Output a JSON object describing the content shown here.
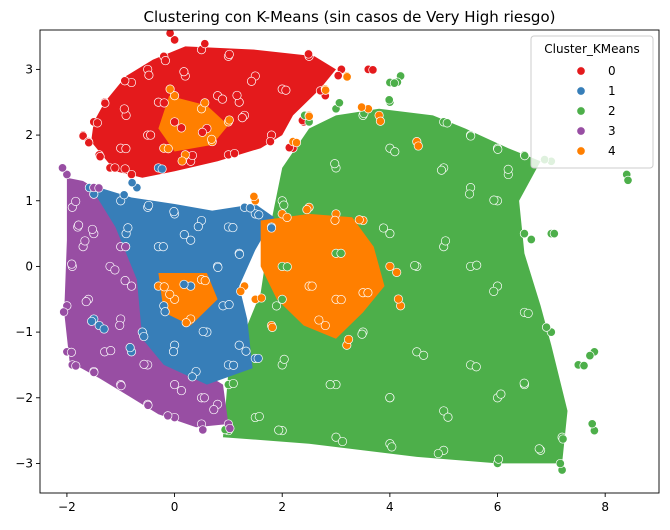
{
  "chart_data": {
    "type": "scatter",
    "title": "Clustering con K-Means (sin casos de Very High riesgo)",
    "xlabel": "",
    "ylabel": "",
    "xlim": [
      -2.5,
      9.0
    ],
    "ylim": [
      -3.45,
      3.6
    ],
    "xticks": [
      -2,
      0,
      2,
      4,
      6,
      8
    ],
    "xtick_labels": [
      "−2",
      "0",
      "2",
      "4",
      "6",
      "8"
    ],
    "yticks": [
      -3,
      -2,
      -1,
      0,
      1,
      2,
      3
    ],
    "ytick_labels": [
      "−3",
      "−2",
      "−1",
      "0",
      "1",
      "2",
      "3"
    ],
    "grid": false,
    "legend": {
      "title": "Cluster_KMeans",
      "placement": "top-right",
      "entries": [
        "0",
        "1",
        "2",
        "3",
        "4"
      ]
    },
    "series": [
      {
        "name": "0",
        "color": "#e41a1c",
        "region": "top-left",
        "points": [
          [
            0.0,
            3.45
          ],
          [
            0.5,
            3.3
          ],
          [
            1.0,
            3.2
          ],
          [
            2.5,
            3.2
          ],
          [
            3.1,
            3.0
          ],
          [
            3.6,
            3.0
          ],
          [
            -1.5,
            2.2
          ],
          [
            -1.7,
            2.0
          ],
          [
            -1.6,
            1.9
          ],
          [
            -1.3,
            2.5
          ],
          [
            -0.8,
            2.8
          ],
          [
            -0.5,
            3.0
          ],
          [
            -0.2,
            3.2
          ],
          [
            0.2,
            2.9
          ],
          [
            0.8,
            2.6
          ],
          [
            1.3,
            2.3
          ],
          [
            1.8,
            2.0
          ],
          [
            2.2,
            1.8
          ],
          [
            0.0,
            2.2
          ],
          [
            -0.5,
            2.0
          ],
          [
            -1.0,
            1.8
          ],
          [
            -1.2,
            1.5
          ],
          [
            -0.8,
            1.4
          ],
          [
            0.3,
            1.6
          ],
          [
            1.0,
            1.7
          ],
          [
            1.5,
            2.9
          ],
          [
            2.0,
            2.7
          ],
          [
            2.8,
            2.6
          ],
          [
            -0.3,
            2.5
          ],
          [
            0.6,
            2.1
          ],
          [
            1.2,
            2.5
          ],
          [
            -1.4,
            1.7
          ],
          [
            -0.9,
            2.3
          ],
          [
            2.4,
            2.2
          ]
        ]
      },
      {
        "name": "1",
        "color": "#377eb8",
        "region": "center-left",
        "points": [
          [
            -1.5,
            1.1
          ],
          [
            -1.0,
            1.0
          ],
          [
            -0.5,
            0.9
          ],
          [
            0.0,
            0.8
          ],
          [
            0.5,
            0.7
          ],
          [
            1.0,
            0.6
          ],
          [
            1.5,
            0.8
          ],
          [
            1.8,
            0.6
          ],
          [
            1.2,
            0.2
          ],
          [
            0.8,
            0.0
          ],
          [
            0.3,
            -0.3
          ],
          [
            -0.2,
            -0.6
          ],
          [
            -0.6,
            -1.0
          ],
          [
            -0.8,
            -1.3
          ],
          [
            -1.4,
            -0.9
          ],
          [
            -1.5,
            -0.8
          ],
          [
            0.0,
            -1.2
          ],
          [
            0.6,
            -1.0
          ],
          [
            1.2,
            -1.2
          ],
          [
            1.5,
            -1.4
          ],
          [
            1.0,
            -1.5
          ],
          [
            -0.3,
            0.3
          ],
          [
            0.3,
            0.4
          ],
          [
            -0.9,
            0.5
          ],
          [
            0.9,
            -0.6
          ],
          [
            0.4,
            -1.6
          ],
          [
            -0.3,
            1.5
          ],
          [
            -0.7,
            1.2
          ],
          [
            1.3,
            0.9
          ]
        ]
      },
      {
        "name": "2",
        "color": "#4daf4a",
        "region": "right",
        "points": [
          [
            2.5,
            2.2
          ],
          [
            3.0,
            2.4
          ],
          [
            3.5,
            2.3
          ],
          [
            4.0,
            2.5
          ],
          [
            4.2,
            2.9
          ],
          [
            4.0,
            2.8
          ],
          [
            5.0,
            2.2
          ],
          [
            5.5,
            2.0
          ],
          [
            6.0,
            1.8
          ],
          [
            6.5,
            1.7
          ],
          [
            7.0,
            1.6
          ],
          [
            8.4,
            1.4
          ],
          [
            2.0,
            1.0
          ],
          [
            3.0,
            1.5
          ],
          [
            4.0,
            1.8
          ],
          [
            5.0,
            1.5
          ],
          [
            5.5,
            1.2
          ],
          [
            6.0,
            1.0
          ],
          [
            6.5,
            0.5
          ],
          [
            7.0,
            0.5
          ],
          [
            2.0,
            0.0
          ],
          [
            3.0,
            0.2
          ],
          [
            4.0,
            0.5
          ],
          [
            5.0,
            0.3
          ],
          [
            5.5,
            0.0
          ],
          [
            6.0,
            -0.3
          ],
          [
            6.5,
            -0.7
          ],
          [
            7.0,
            -1.0
          ],
          [
            7.5,
            -1.5
          ],
          [
            7.8,
            -1.3
          ],
          [
            7.8,
            -2.5
          ],
          [
            7.2,
            -2.6
          ],
          [
            7.2,
            -3.1
          ],
          [
            6.8,
            -2.8
          ],
          [
            6.0,
            -3.0
          ],
          [
            5.0,
            -2.8
          ],
          [
            4.0,
            -2.7
          ],
          [
            3.0,
            -2.6
          ],
          [
            2.0,
            -2.5
          ],
          [
            1.0,
            -2.5
          ],
          [
            1.5,
            -2.3
          ],
          [
            1.0,
            -1.8
          ],
          [
            2.0,
            -1.5
          ],
          [
            3.0,
            -1.8
          ],
          [
            4.0,
            -2.0
          ],
          [
            5.0,
            -2.2
          ],
          [
            6.0,
            -2.0
          ],
          [
            2.0,
            -0.5
          ],
          [
            3.5,
            -1.0
          ],
          [
            4.5,
            -1.3
          ],
          [
            5.5,
            -1.5
          ],
          [
            6.5,
            -1.8
          ],
          [
            4.5,
            0.0
          ],
          [
            6.2,
            1.4
          ]
        ]
      },
      {
        "name": "3",
        "color": "#984ea3",
        "region": "left",
        "points": [
          [
            -2.0,
            1.4
          ],
          [
            -1.9,
            0.9
          ],
          [
            -1.8,
            0.6
          ],
          [
            -1.9,
            0.0
          ],
          [
            -2.0,
            -0.6
          ],
          [
            -2.0,
            -1.3
          ],
          [
            -1.9,
            -1.5
          ],
          [
            -1.5,
            -1.6
          ],
          [
            -1.0,
            -1.8
          ],
          [
            -0.5,
            -2.1
          ],
          [
            0.0,
            -2.3
          ],
          [
            0.5,
            -2.4
          ],
          [
            1.0,
            -2.4
          ],
          [
            -1.5,
            0.5
          ],
          [
            -1.2,
            0.0
          ],
          [
            -1.6,
            -0.5
          ],
          [
            -1.0,
            -0.8
          ],
          [
            -0.5,
            -1.5
          ],
          [
            0.0,
            -1.8
          ],
          [
            0.5,
            -2.0
          ],
          [
            -1.5,
            1.2
          ],
          [
            -1.0,
            0.3
          ],
          [
            -0.8,
            -0.3
          ],
          [
            -1.7,
            0.3
          ],
          [
            -1.3,
            -1.3
          ],
          [
            0.8,
            -2.1
          ]
        ]
      },
      {
        "name": "4",
        "color": "#ff7f00",
        "region": "center",
        "points": [
          [
            0.0,
            2.6
          ],
          [
            0.5,
            2.4
          ],
          [
            1.0,
            2.2
          ],
          [
            0.7,
            1.9
          ],
          [
            0.2,
            1.7
          ],
          [
            -0.2,
            1.8
          ],
          [
            2.2,
            1.9
          ],
          [
            2.5,
            2.3
          ],
          [
            2.8,
            2.7
          ],
          [
            3.2,
            2.9
          ],
          [
            3.6,
            2.4
          ],
          [
            3.8,
            2.3
          ],
          [
            4.5,
            1.9
          ],
          [
            1.5,
            1.0
          ],
          [
            2.0,
            0.8
          ],
          [
            2.5,
            0.9
          ],
          [
            3.0,
            0.8
          ],
          [
            3.5,
            0.7
          ],
          [
            4.0,
            0.0
          ],
          [
            2.5,
            -0.3
          ],
          [
            3.0,
            -0.5
          ],
          [
            3.5,
            -0.4
          ],
          [
            2.8,
            -0.9
          ],
          [
            3.2,
            -1.2
          ],
          [
            1.5,
            -0.5
          ],
          [
            1.3,
            -0.3
          ],
          [
            0.5,
            -0.2
          ],
          [
            0.0,
            -0.5
          ],
          [
            -0.3,
            -0.3
          ],
          [
            0.3,
            -0.8
          ],
          [
            4.2,
            -0.6
          ],
          [
            1.8,
            -0.9
          ]
        ]
      }
    ]
  }
}
